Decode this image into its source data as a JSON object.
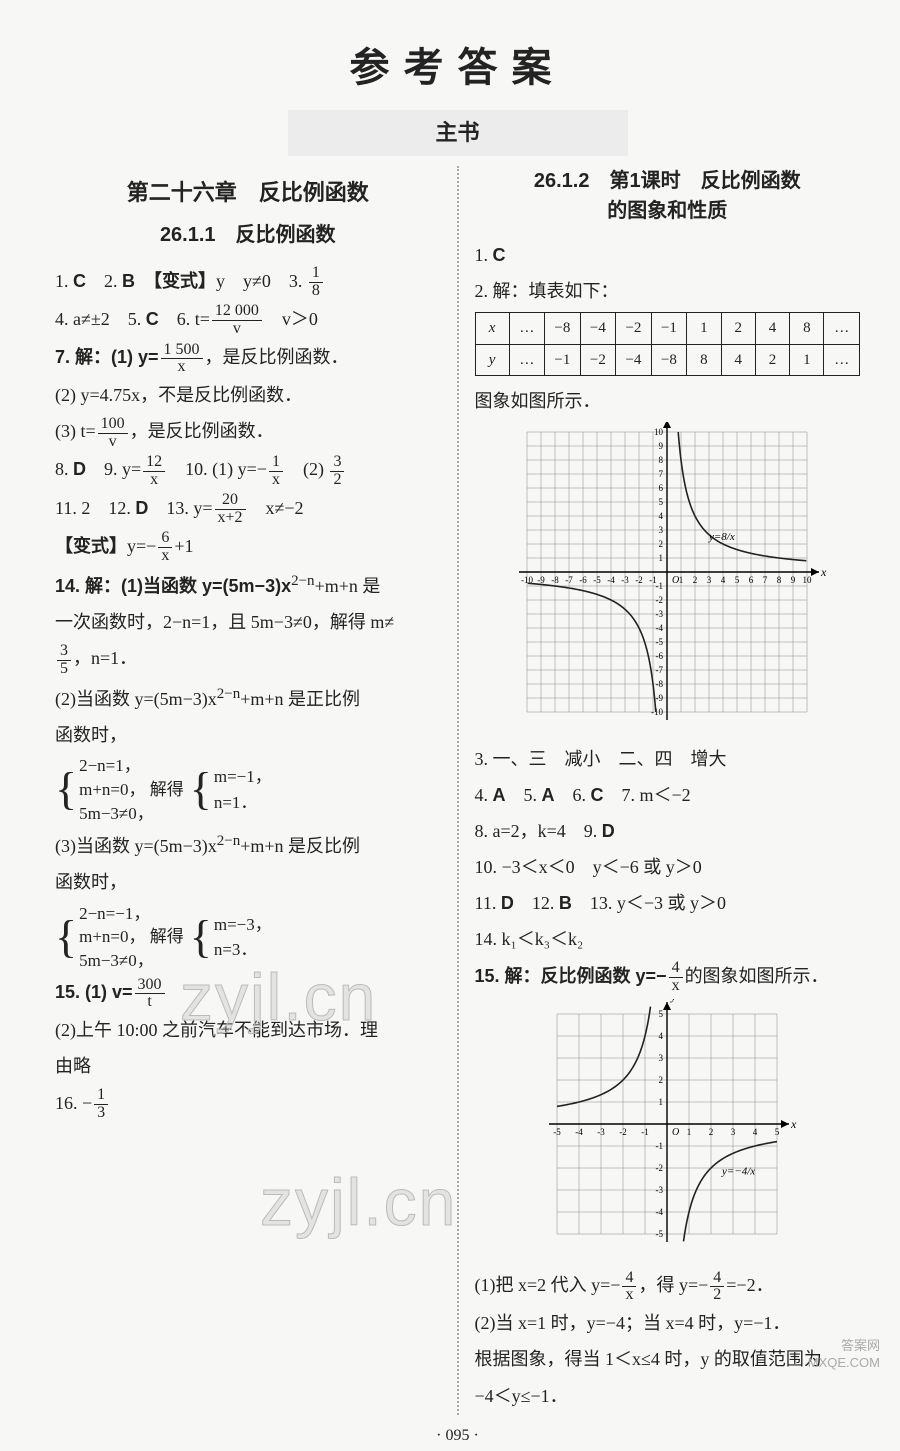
{
  "page_title": "参考答案",
  "subtitle": "主书",
  "chapter": "第二十六章　反比例函数",
  "sec_left": "26.1.1　反比例函数",
  "sec_right_l1": "26.1.2　第1课时　反比例函数",
  "sec_right_l2": "的图象和性质",
  "left": {
    "l1a": "1. ",
    "l1b": "C",
    "l1c": "　2. ",
    "l1d": "B",
    "l1e": "　【变式】",
    "l1f": "y　y≠0　3. ",
    "f1n": "1",
    "f1d": "8",
    "l4a": "4. a≠±2　5. ",
    "l4b": "C",
    "l4c": "　6. t=",
    "f4n": "12 000",
    "f4d": "v",
    "l4e": "　v＞0",
    "l7a": "7. 解：(1) y=",
    "f7n": "1 500",
    "f7d": "x",
    "l7c": "，是反比例函数．",
    "l72": "(2) y=4.75x，不是反比例函数．",
    "l73a": "(3) t=",
    "f73n": "100",
    "f73d": "v",
    "l73c": "，是反比例函数．",
    "l8a": "8. ",
    "l8b": "D",
    "l8c": "　9. y=",
    "f9n": "12",
    "f9d": "x",
    "l8e": "　10. (1) y=−",
    "f10n": "1",
    "f10d": "x",
    "l8g": "　(2) ",
    "f10bn": "3",
    "f10bd": "2",
    "l11a": "11. 2　12. ",
    "l11b": "D",
    "l11c": "　13. y=",
    "f13n": "20",
    "f13d": "x+2",
    "l11e": "　x≠−2",
    "lbxa": "【变式】",
    "lbxb": "y=−",
    "fbxn": "6",
    "fbxd": "x",
    "lbxc": "+1",
    "l14a": "14. 解：(1)当函数 y=(5m−3)x",
    "l14sup": "2−n",
    "l14b": "+m+n 是",
    "l14c": "一次函数时，2−n=1，且 5m−3≠0，解得 m≠",
    "f14n": "3",
    "f14d": "5",
    "l14e": "，n=1．",
    "l142a": "(2)当函数 y=(5m−3)x",
    "l142sup": "2−n",
    "l142b": "+m+n 是正比例",
    "l142c": "函数时，",
    "br1_1": "2−n=1，",
    "br1_2": "m+n=0，",
    "br1_2b": "解得",
    "br1_3": "5m−3≠0，",
    "br1r1": "m=−1，",
    "br1r2": "n=1．",
    "l143a": "(3)当函数 y=(5m−3)x",
    "l143sup": "2−n",
    "l143b": "+m+n 是反比例",
    "l143c": "函数时，",
    "br2_1": "2−n=−1，",
    "br2_2": "m+n=0，",
    "br2_2b": "解得",
    "br2_3": "5m−3≠0，",
    "br2r1": "m=−3，",
    "br2r2": "n=3．",
    "l15a": "15. (1) v=",
    "f15n": "300",
    "f15d": "t",
    "l152": "(2)上午 10:00 之前汽车不能到达市场．理",
    "l152b": "由略",
    "l16a": "16. −",
    "f16n": "1",
    "f16d": "3"
  },
  "right": {
    "r1a": "1. ",
    "r1b": "C",
    "r2": "2. 解：填表如下：",
    "tbl_h": [
      "x",
      "…",
      "−8",
      "−4",
      "−2",
      "−1",
      "1",
      "2",
      "4",
      "8",
      "…"
    ],
    "tbl_r": [
      "y",
      "…",
      "−1",
      "−2",
      "−4",
      "−8",
      "8",
      "4",
      "2",
      "1",
      "…"
    ],
    "rg": "图象如图所示．",
    "r3": "3. 一、三　减小　二、四　增大",
    "r4a": "4. ",
    "r4b": "A",
    "r4c": "　5. ",
    "r4d": "A",
    "r4e": "　6. ",
    "r4f": "C",
    "r4g": "　7. m＜−2",
    "r8": "8. a=2，k=4　9. ",
    "r8b": "D",
    "r10": "10. −3＜x＜0　y＜−6 或 y＞0",
    "r11a": "11. ",
    "r11b": "D",
    "r11c": "　12. ",
    "r11d": "B",
    "r11e": "　13. y＜−3 或 y＞0",
    "r14": "14. k₁＜k₃＜k₂",
    "r15a": "15. 解：反比例函数 y=−",
    "f15rn": "4",
    "f15rd": "x",
    "r15c": "的图象如图所示．",
    "r15_1a": "(1)把 x=2 代入 y=−",
    "f151n": "4",
    "f151d": "x",
    "r15_1c": "，得 y=−",
    "f151bn": "4",
    "f151bd": "2",
    "r15_1e": "=−2．",
    "r15_2a": "(2)当 x=1 时，y=−4；当 x=4 时，y=−1．",
    "r15_2b": "根据图象，得当 1＜x≤4 时，y 的取值范围为",
    "r15_2c": "−4＜y≤−1．"
  },
  "graph1": {
    "cell": 14,
    "range": 10,
    "curve_color": "#222",
    "xticks": [
      "-10",
      "-9",
      "-8",
      "-7",
      "-6",
      "-5",
      "-4",
      "-3",
      "-2",
      "-1",
      "1",
      "2",
      "3",
      "4",
      "5",
      "6",
      "7",
      "8",
      "9",
      "10"
    ],
    "yticks": [
      "-10",
      "-9",
      "-8",
      "-7",
      "-6",
      "-5",
      "-4",
      "-3",
      "-2",
      "-1",
      "1",
      "2",
      "3",
      "4",
      "5",
      "6",
      "7",
      "8",
      "9",
      "10"
    ],
    "label": "y=8/x",
    "axis_y": "y",
    "axis_x": "x",
    "origin": "O"
  },
  "graph2": {
    "cell": 22,
    "range": 5,
    "curve_color": "#222",
    "xticks": [
      "-5",
      "-4",
      "-3",
      "-2",
      "-1",
      "1",
      "2",
      "3",
      "4",
      "5"
    ],
    "yticks": [
      "-5",
      "-4",
      "-3",
      "-2",
      "-1",
      "1",
      "2",
      "3",
      "4",
      "5"
    ],
    "label": "y=−4/x",
    "axis_y": "y",
    "axis_x": "x",
    "origin": "O"
  },
  "page_num": "· 095 ·",
  "wm1": "zyjl.cn",
  "wm2": "zyjl.cn",
  "footer_wm1": "答案网",
  "footer_wm2": "MXQE.COM"
}
